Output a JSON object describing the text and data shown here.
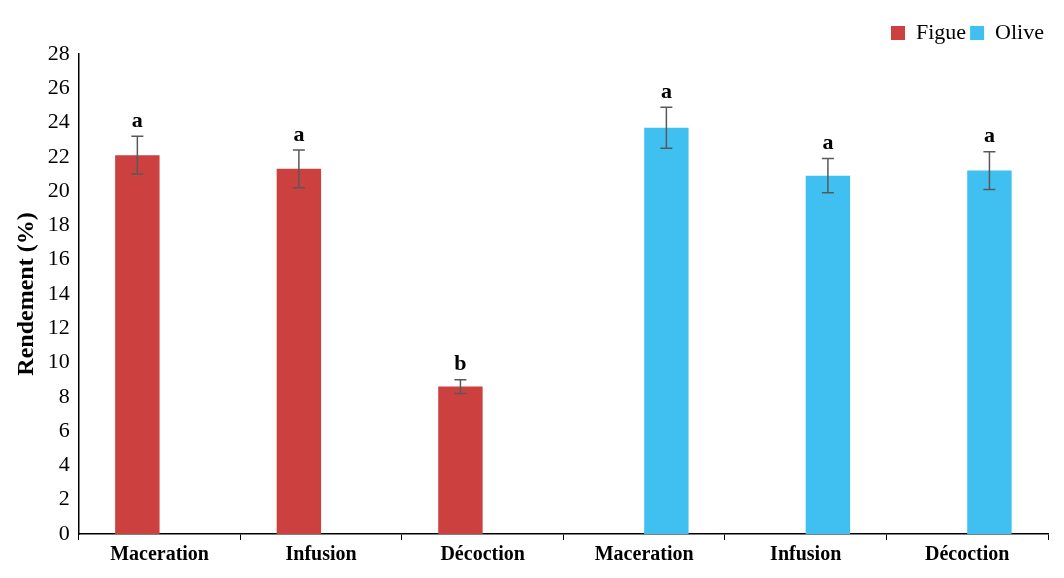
{
  "chart_data": {
    "type": "bar",
    "ylabel": "Rendement (%)",
    "categories": [
      "Maceration",
      "Infusion",
      "Décoction",
      "Maceration",
      "Infusion",
      "Décoction"
    ],
    "series": [
      {
        "name": "Figue",
        "color": "#cd4040",
        "values": [
          22.1,
          21.3,
          8.6,
          0,
          0,
          0
        ],
        "errors": [
          1.1,
          1.1,
          0.4,
          null,
          null,
          null
        ],
        "value_labels": [
          "a",
          "a",
          "b",
          null,
          null,
          null
        ]
      },
      {
        "name": "Olive",
        "color": "#40c0f0",
        "values": [
          0,
          0,
          0,
          23.7,
          20.9,
          21.2
        ],
        "errors": [
          null,
          null,
          null,
          1.2,
          1.0,
          1.1
        ],
        "value_labels": [
          null,
          null,
          null,
          "a",
          "a",
          "a"
        ]
      }
    ],
    "ylim": [
      0,
      28
    ],
    "yticks": [
      0,
      2,
      4,
      6,
      8,
      10,
      12,
      14,
      16,
      18,
      20,
      22,
      24,
      26,
      28
    ],
    "grid": false,
    "legend": "top right"
  }
}
